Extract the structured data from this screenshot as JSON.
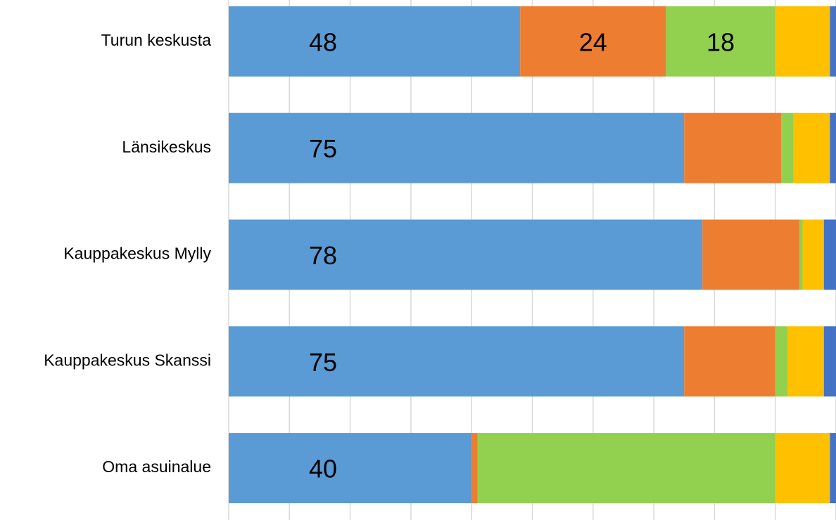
{
  "chart_data": {
    "type": "stacked-bar-horizontal",
    "categories": [
      "Turun keskusta",
      "Länsikeskus",
      "Kauppakeskus Mylly",
      "Kauppakeskus Skanssi",
      "Oma asuinalue"
    ],
    "series": [
      {
        "color": "#5b9bd5",
        "values": [
          48,
          75,
          78,
          75,
          40
        ],
        "value_labels": [
          "48",
          "75",
          "78",
          "75",
          "40"
        ]
      },
      {
        "color": "#ed7d31",
        "values": [
          24,
          16,
          16,
          15,
          1
        ],
        "value_labels": [
          "24",
          null,
          null,
          null,
          null
        ]
      },
      {
        "color": "#92d050",
        "values": [
          18,
          2,
          0.5,
          2,
          49
        ],
        "value_labels": [
          "18",
          null,
          null,
          null,
          null
        ]
      },
      {
        "color": "#ffc000",
        "values": [
          9,
          6,
          3.5,
          6,
          9
        ]
      },
      {
        "color": "#4472c4",
        "values": [
          1,
          1,
          2,
          2,
          1
        ]
      }
    ],
    "xlim": [
      0,
      100
    ],
    "xticks": [
      0,
      10,
      20,
      30,
      40,
      50,
      60,
      70,
      80,
      90,
      100
    ],
    "grid": true
  }
}
